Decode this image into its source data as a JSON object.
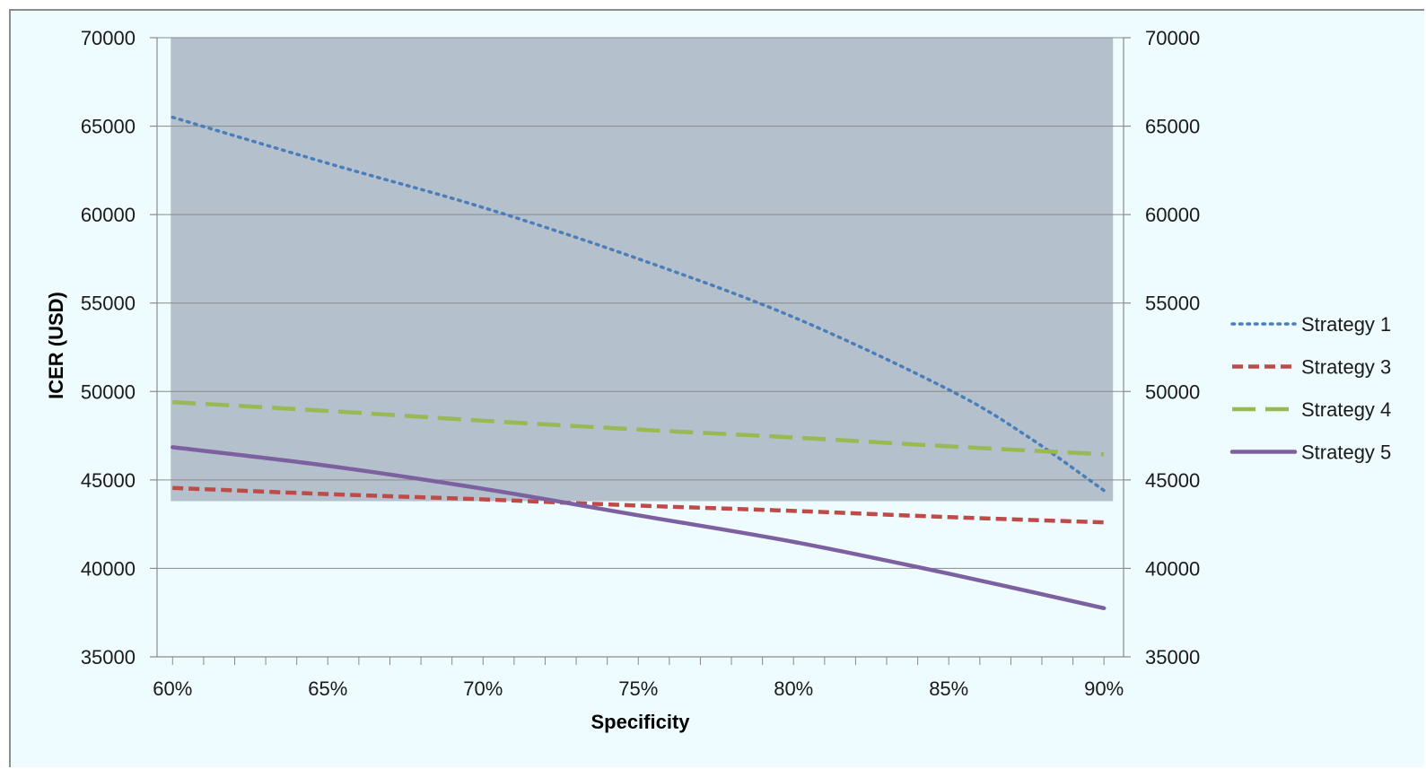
{
  "chart_data": {
    "type": "line",
    "title": "",
    "xlabel": "Specificity",
    "ylabel": "ICER (USD)",
    "xlim": [
      0.595,
      0.9063
    ],
    "ylim": [
      35000,
      70000
    ],
    "x_ticks": [
      0.6,
      0.65,
      0.7,
      0.75,
      0.8,
      0.85,
      0.9
    ],
    "x_tick_labels": [
      "60%",
      "65%",
      "70%",
      "75%",
      "80%",
      "85%",
      "90%"
    ],
    "y_ticks": [
      35000,
      40000,
      45000,
      50000,
      55000,
      60000,
      65000,
      70000
    ],
    "y_tick_labels": [
      "35000",
      "40000",
      "45000",
      "50000",
      "55000",
      "60000",
      "65000",
      "70000"
    ],
    "secondary_y_axis": true,
    "grid": "horizontal",
    "legend_position": "right",
    "shaded_region": {
      "x_range": [
        0.6,
        0.9
      ],
      "y_range": [
        43800,
        70000
      ],
      "color": "#b4c0cc"
    },
    "series": [
      {
        "name": "Strategy 1",
        "style": "dotted",
        "color": "#4a7ebb",
        "x": [
          0.6,
          0.65,
          0.7,
          0.75,
          0.8,
          0.85,
          0.875,
          0.9
        ],
        "y": [
          65500,
          62900,
          60400,
          57500,
          54200,
          50100,
          47500,
          44400
        ]
      },
      {
        "name": "Strategy 3",
        "style": "dashed",
        "color": "#be4b48",
        "x": [
          0.6,
          0.65,
          0.7,
          0.75,
          0.8,
          0.85,
          0.9
        ],
        "y": [
          44550,
          44200,
          43900,
          43550,
          43250,
          42900,
          42600
        ]
      },
      {
        "name": "Strategy 4",
        "style": "longdash",
        "color": "#98b954",
        "x": [
          0.6,
          0.65,
          0.7,
          0.75,
          0.8,
          0.85,
          0.9
        ],
        "y": [
          49400,
          48900,
          48350,
          47850,
          47400,
          46900,
          46450
        ]
      },
      {
        "name": "Strategy 5",
        "style": "solid",
        "color": "#7d60a0",
        "x": [
          0.6,
          0.65,
          0.7,
          0.75,
          0.8,
          0.85,
          0.9
        ],
        "y": [
          46850,
          45800,
          44500,
          43000,
          41500,
          39700,
          37750
        ]
      }
    ]
  }
}
